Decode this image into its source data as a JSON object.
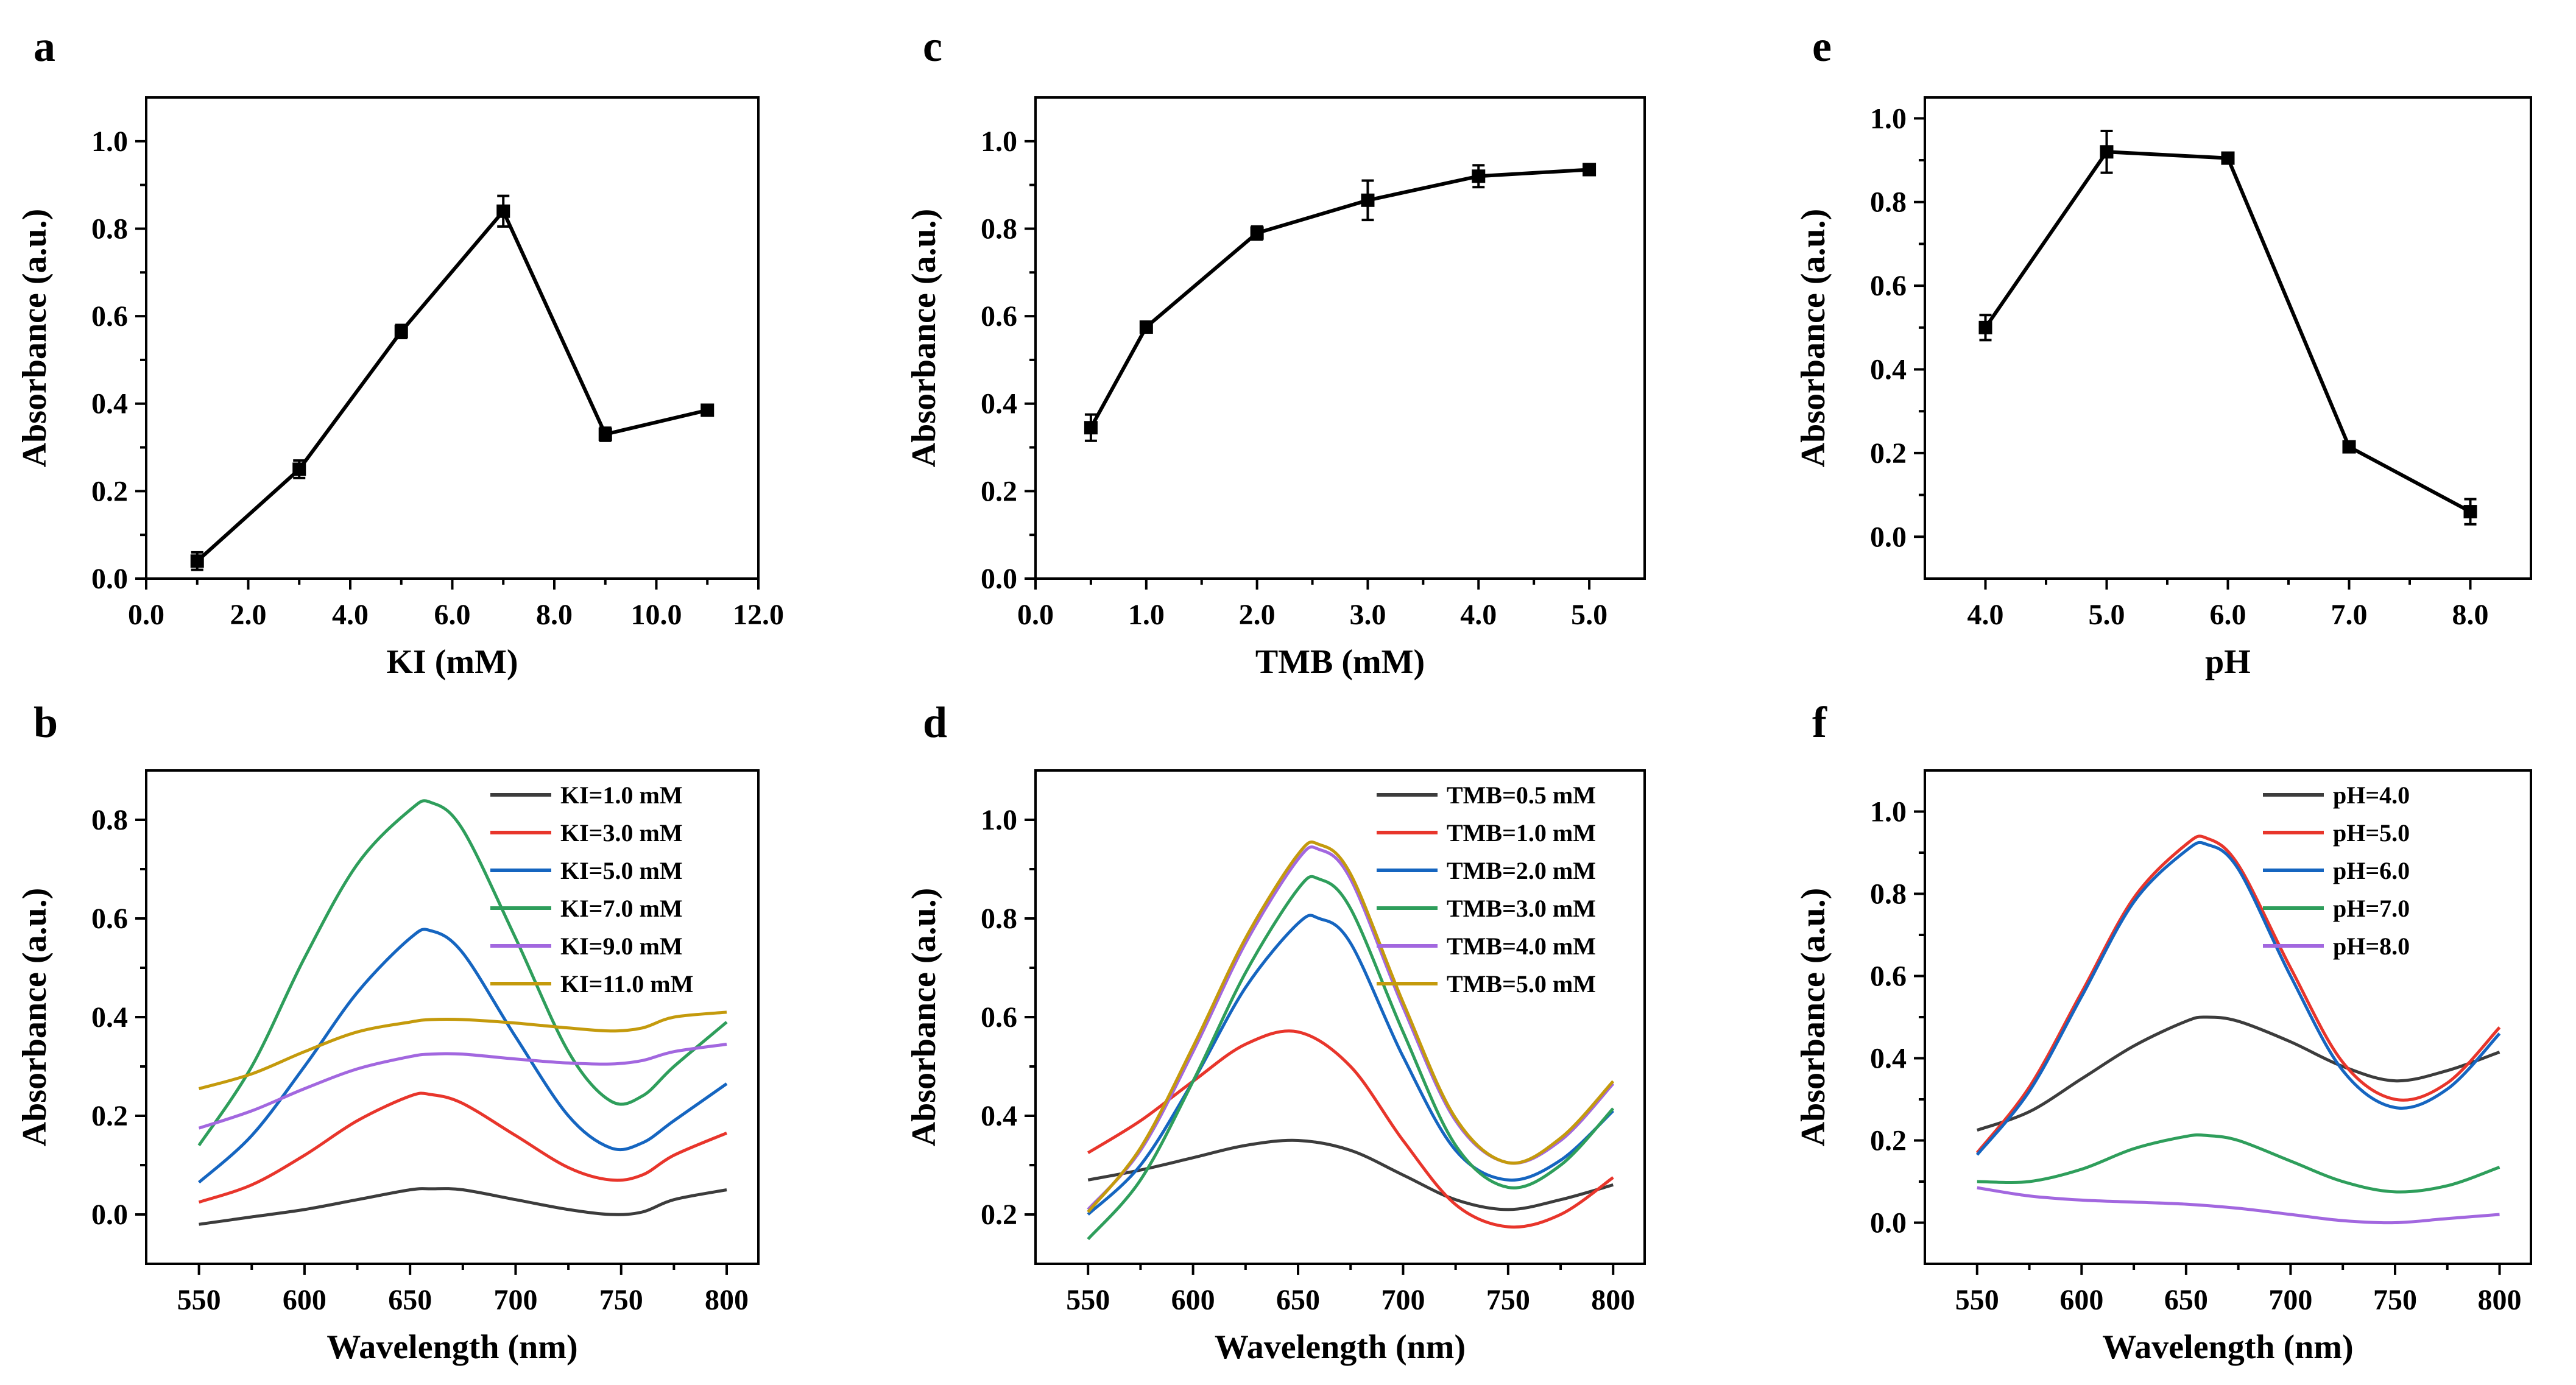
{
  "figure": {
    "panel_count": 6
  },
  "chart_data": [
    {
      "id": "a",
      "letter": "a",
      "type": "line",
      "xlabel": "KI (mM)",
      "ylabel": "Absorbance (a.u.)",
      "xlim": [
        0,
        12
      ],
      "ylim": [
        0,
        1.1
      ],
      "xticks": [
        0,
        2,
        4,
        6,
        8,
        10,
        12
      ],
      "xtick_labels": [
        "0.0",
        "2.0",
        "4.0",
        "6.0",
        "8.0",
        "10.0",
        "12.0"
      ],
      "yticks": [
        0,
        0.2,
        0.4,
        0.6,
        0.8,
        1.0
      ],
      "ytick_labels": [
        "0.0",
        "0.2",
        "0.4",
        "0.6",
        "0.8",
        "1.0"
      ],
      "series": [
        {
          "name": "Absorbance",
          "color": "#000000",
          "x": [
            1,
            3,
            5,
            7,
            9,
            11
          ],
          "y": [
            0.04,
            0.25,
            0.565,
            0.84,
            0.33,
            0.385
          ],
          "err": [
            0.02,
            0.02,
            0.015,
            0.035,
            0.015,
            0.01
          ]
        }
      ]
    },
    {
      "id": "b",
      "letter": "b",
      "type": "line",
      "xlabel": "Wavelength (nm)",
      "ylabel": "Absorbance (a.u.)",
      "xlim": [
        525,
        815
      ],
      "ylim": [
        -0.1,
        0.9
      ],
      "xticks": [
        550,
        600,
        650,
        700,
        750,
        800
      ],
      "xtick_labels": [
        "550",
        "600",
        "650",
        "700",
        "750",
        "800"
      ],
      "yticks": [
        0,
        0.2,
        0.4,
        0.6,
        0.8
      ],
      "ytick_labels": [
        "0.0",
        "0.2",
        "0.4",
        "0.6",
        "0.8"
      ],
      "legend_position": "top-right",
      "series": [
        {
          "name": "KI=1.0 mM",
          "color": "#3c3c3c",
          "x": [
            550,
            575,
            600,
            625,
            650,
            660,
            675,
            700,
            725,
            745,
            760,
            775,
            800
          ],
          "y": [
            -0.02,
            -0.005,
            0.01,
            0.03,
            0.05,
            0.052,
            0.05,
            0.03,
            0.01,
            0.0,
            0.005,
            0.03,
            0.05
          ]
        },
        {
          "name": "KI=3.0 mM",
          "color": "#e8352b",
          "x": [
            550,
            575,
            600,
            625,
            650,
            660,
            675,
            700,
            725,
            745,
            760,
            775,
            800
          ],
          "y": [
            0.025,
            0.06,
            0.12,
            0.19,
            0.24,
            0.243,
            0.225,
            0.16,
            0.095,
            0.07,
            0.08,
            0.12,
            0.165
          ]
        },
        {
          "name": "KI=5.0 mM",
          "color": "#1565c0",
          "x": [
            550,
            575,
            600,
            625,
            650,
            660,
            675,
            700,
            725,
            745,
            760,
            775,
            800
          ],
          "y": [
            0.065,
            0.16,
            0.3,
            0.45,
            0.56,
            0.575,
            0.53,
            0.36,
            0.2,
            0.135,
            0.145,
            0.19,
            0.265
          ]
        },
        {
          "name": "KI=7.0 mM",
          "color": "#2e9e5b",
          "x": [
            550,
            575,
            600,
            625,
            650,
            660,
            675,
            700,
            725,
            745,
            760,
            775,
            800
          ],
          "y": [
            0.14,
            0.3,
            0.52,
            0.71,
            0.82,
            0.835,
            0.78,
            0.56,
            0.33,
            0.23,
            0.24,
            0.3,
            0.39
          ]
        },
        {
          "name": "KI=9.0 mM",
          "color": "#a267df",
          "x": [
            550,
            575,
            600,
            625,
            650,
            660,
            675,
            700,
            725,
            745,
            760,
            775,
            800
          ],
          "y": [
            0.175,
            0.21,
            0.255,
            0.295,
            0.32,
            0.325,
            0.325,
            0.315,
            0.307,
            0.305,
            0.312,
            0.33,
            0.345
          ]
        },
        {
          "name": "KI=11.0 mM",
          "color": "#c49a0c",
          "x": [
            550,
            575,
            600,
            625,
            650,
            660,
            675,
            700,
            725,
            745,
            760,
            775,
            800
          ],
          "y": [
            0.255,
            0.285,
            0.33,
            0.37,
            0.39,
            0.395,
            0.395,
            0.388,
            0.378,
            0.372,
            0.378,
            0.4,
            0.41
          ]
        }
      ]
    },
    {
      "id": "c",
      "letter": "c",
      "type": "line",
      "xlabel": "TMB (mM)",
      "ylabel": "Absorbance (a.u.)",
      "xlim": [
        0,
        5.5
      ],
      "ylim": [
        0,
        1.1
      ],
      "xticks": [
        0,
        1,
        2,
        3,
        4,
        5
      ],
      "xtick_labels": [
        "0.0",
        "1.0",
        "2.0",
        "3.0",
        "4.0",
        "5.0"
      ],
      "yticks": [
        0,
        0.2,
        0.4,
        0.6,
        0.8,
        1.0
      ],
      "ytick_labels": [
        "0.0",
        "0.2",
        "0.4",
        "0.6",
        "0.8",
        "1.0"
      ],
      "series": [
        {
          "name": "Absorbance",
          "color": "#000000",
          "x": [
            0.5,
            1,
            2,
            3,
            4,
            5
          ],
          "y": [
            0.345,
            0.575,
            0.79,
            0.865,
            0.92,
            0.935
          ],
          "err": [
            0.03,
            0.01,
            0.015,
            0.045,
            0.025,
            0.008
          ]
        }
      ]
    },
    {
      "id": "d",
      "letter": "d",
      "type": "line",
      "xlabel": "Wavelength (nm)",
      "ylabel": "Absorbance (a.u.)",
      "xlim": [
        525,
        815
      ],
      "ylim": [
        0.1,
        1.1
      ],
      "xticks": [
        550,
        600,
        650,
        700,
        750,
        800
      ],
      "xtick_labels": [
        "550",
        "600",
        "650",
        "700",
        "750",
        "800"
      ],
      "yticks": [
        0.2,
        0.4,
        0.6,
        0.8,
        1.0
      ],
      "ytick_labels": [
        "0.2",
        "0.4",
        "0.6",
        "0.8",
        "1.0"
      ],
      "legend_position": "top-right",
      "series": [
        {
          "name": "TMB=0.5 mM",
          "color": "#3c3c3c",
          "x": [
            550,
            575,
            600,
            625,
            650,
            675,
            700,
            725,
            750,
            775,
            800
          ],
          "y": [
            0.27,
            0.29,
            0.315,
            0.34,
            0.35,
            0.33,
            0.28,
            0.23,
            0.21,
            0.23,
            0.26
          ]
        },
        {
          "name": "TMB=1.0 mM",
          "color": "#e8352b",
          "x": [
            550,
            575,
            600,
            625,
            650,
            675,
            700,
            725,
            750,
            775,
            800
          ],
          "y": [
            0.325,
            0.39,
            0.47,
            0.545,
            0.57,
            0.5,
            0.35,
            0.22,
            0.175,
            0.2,
            0.275
          ]
        },
        {
          "name": "TMB=2.0 mM",
          "color": "#1565c0",
          "x": [
            550,
            575,
            600,
            625,
            650,
            660,
            675,
            700,
            725,
            750,
            775,
            800
          ],
          "y": [
            0.2,
            0.3,
            0.47,
            0.66,
            0.79,
            0.8,
            0.75,
            0.52,
            0.33,
            0.27,
            0.31,
            0.41
          ]
        },
        {
          "name": "TMB=3.0 mM",
          "color": "#2e9e5b",
          "x": [
            550,
            575,
            600,
            625,
            650,
            660,
            675,
            700,
            725,
            750,
            775,
            800
          ],
          "y": [
            0.15,
            0.27,
            0.47,
            0.69,
            0.86,
            0.88,
            0.82,
            0.57,
            0.34,
            0.255,
            0.3,
            0.415
          ]
        },
        {
          "name": "TMB=4.0 mM",
          "color": "#a267df",
          "x": [
            550,
            575,
            600,
            625,
            650,
            660,
            675,
            700,
            725,
            750,
            775,
            800
          ],
          "y": [
            0.21,
            0.33,
            0.53,
            0.75,
            0.92,
            0.94,
            0.88,
            0.62,
            0.39,
            0.305,
            0.35,
            0.465
          ]
        },
        {
          "name": "TMB=5.0 mM",
          "color": "#c49a0c",
          "x": [
            550,
            575,
            600,
            625,
            650,
            660,
            675,
            700,
            725,
            750,
            775,
            800
          ],
          "y": [
            0.205,
            0.335,
            0.54,
            0.76,
            0.93,
            0.95,
            0.89,
            0.63,
            0.395,
            0.305,
            0.355,
            0.47
          ]
        }
      ]
    },
    {
      "id": "e",
      "letter": "e",
      "type": "line",
      "xlabel": "pH",
      "ylabel": "Absorbance (a.u.)",
      "xlim": [
        3.5,
        8.5
      ],
      "ylim": [
        -0.1,
        1.05
      ],
      "xticks": [
        4,
        5,
        6,
        7,
        8
      ],
      "xtick_labels": [
        "4.0",
        "5.0",
        "6.0",
        "7.0",
        "8.0"
      ],
      "yticks": [
        0,
        0.2,
        0.4,
        0.6,
        0.8,
        1.0
      ],
      "ytick_labels": [
        "0.0",
        "0.2",
        "0.4",
        "0.6",
        "0.8",
        "1.0"
      ],
      "series": [
        {
          "name": "Absorbance",
          "color": "#000000",
          "x": [
            4,
            5,
            6,
            7,
            8
          ],
          "y": [
            0.5,
            0.92,
            0.905,
            0.215,
            0.06
          ],
          "err": [
            0.03,
            0.05,
            0.008,
            0.008,
            0.03
          ]
        }
      ]
    },
    {
      "id": "f",
      "letter": "f",
      "type": "line",
      "xlabel": "Wavelength (nm)",
      "ylabel": "Absorbance (a.u.)",
      "xlim": [
        525,
        815
      ],
      "ylim": [
        -0.1,
        1.1
      ],
      "xticks": [
        550,
        600,
        650,
        700,
        750,
        800
      ],
      "xtick_labels": [
        "550",
        "600",
        "650",
        "700",
        "750",
        "800"
      ],
      "yticks": [
        0,
        0.2,
        0.4,
        0.6,
        0.8,
        1.0
      ],
      "ytick_labels": [
        "0.0",
        "0.2",
        "0.4",
        "0.6",
        "0.8",
        "1.0"
      ],
      "legend_position": "top-right",
      "series": [
        {
          "name": "pH=4.0",
          "color": "#3c3c3c",
          "x": [
            550,
            575,
            600,
            625,
            650,
            660,
            675,
            700,
            725,
            750,
            775,
            800
          ],
          "y": [
            0.225,
            0.27,
            0.35,
            0.43,
            0.49,
            0.5,
            0.49,
            0.44,
            0.38,
            0.345,
            0.37,
            0.415
          ]
        },
        {
          "name": "pH=5.0",
          "color": "#e8352b",
          "x": [
            550,
            575,
            600,
            625,
            650,
            660,
            675,
            700,
            725,
            750,
            775,
            800
          ],
          "y": [
            0.17,
            0.33,
            0.56,
            0.79,
            0.92,
            0.935,
            0.87,
            0.62,
            0.39,
            0.3,
            0.34,
            0.475
          ]
        },
        {
          "name": "pH=6.0",
          "color": "#1565c0",
          "x": [
            550,
            575,
            600,
            625,
            650,
            660,
            675,
            700,
            725,
            750,
            775,
            800
          ],
          "y": [
            0.165,
            0.32,
            0.55,
            0.78,
            0.905,
            0.92,
            0.86,
            0.6,
            0.37,
            0.28,
            0.325,
            0.46
          ]
        },
        {
          "name": "pH=7.0",
          "color": "#2e9e5b",
          "x": [
            550,
            575,
            600,
            625,
            650,
            660,
            675,
            700,
            725,
            750,
            775,
            800
          ],
          "y": [
            0.1,
            0.1,
            0.13,
            0.18,
            0.21,
            0.212,
            0.2,
            0.15,
            0.1,
            0.075,
            0.09,
            0.135
          ]
        },
        {
          "name": "pH=8.0",
          "color": "#a267df",
          "x": [
            550,
            575,
            600,
            625,
            650,
            675,
            700,
            725,
            750,
            775,
            800
          ],
          "y": [
            0.085,
            0.065,
            0.055,
            0.05,
            0.045,
            0.035,
            0.02,
            0.005,
            0.0,
            0.01,
            0.02
          ]
        }
      ]
    }
  ]
}
